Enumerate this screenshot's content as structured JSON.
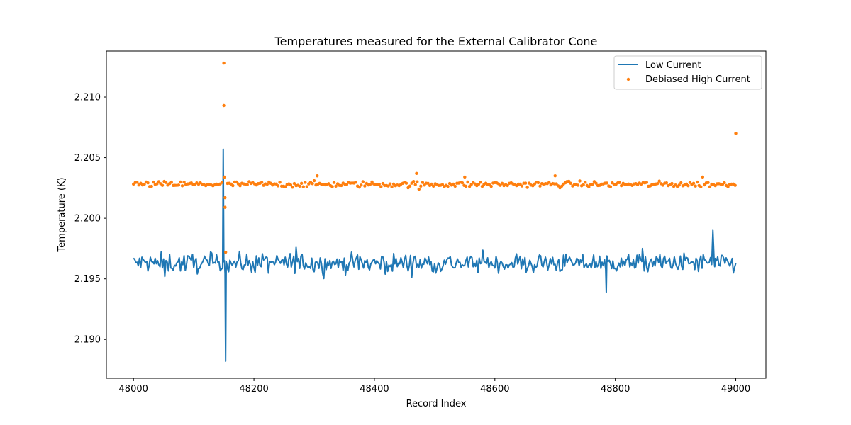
{
  "chart_data": {
    "type": "line",
    "title": "Temperatures measured for the External Calibrator Cone",
    "xlabel": "Record Index",
    "ylabel": "Temperature (K)",
    "xlim": [
      47955,
      49050
    ],
    "ylim": [
      2.1868,
      2.2138
    ],
    "x_ticks": [
      48000,
      48200,
      48400,
      48600,
      48800,
      49000
    ],
    "x_tick_labels": [
      "48000",
      "48200",
      "48400",
      "48600",
      "48800",
      "49000"
    ],
    "y_ticks": [
      2.19,
      2.195,
      2.2,
      2.205,
      2.21
    ],
    "y_tick_labels": [
      "2.190",
      "2.195",
      "2.200",
      "2.205",
      "2.210"
    ],
    "x_range": [
      48000,
      49000
    ],
    "legend_position": "top-right",
    "series": [
      {
        "name": "Low Current",
        "kind": "line",
        "color": "#1f77b4",
        "baseline": 2.1963,
        "noise": 0.0004,
        "features": [
          {
            "x": 48052,
            "y": 2.1952
          },
          {
            "x": 48149,
            "y": 2.2057
          },
          {
            "x": 48151,
            "y": 2.1965
          },
          {
            "x": 48153,
            "y": 2.1882
          },
          {
            "x": 48155,
            "y": 2.1962
          },
          {
            "x": 48270,
            "y": 2.1976
          },
          {
            "x": 48785,
            "y": 2.1939
          },
          {
            "x": 48845,
            "y": 2.1975
          },
          {
            "x": 48962,
            "y": 2.199
          },
          {
            "x": 48965,
            "y": 2.196
          }
        ]
      },
      {
        "name": "Debiased High Current",
        "kind": "scatter",
        "color": "#ff7f0e",
        "baseline": 2.2028,
        "noise": 0.00012,
        "features": [
          {
            "x": 48150,
            "y": 2.2128
          },
          {
            "x": 48150,
            "y": 2.2093
          },
          {
            "x": 48151,
            "y": 2.2034
          },
          {
            "x": 48152,
            "y": 2.2017
          },
          {
            "x": 48152,
            "y": 2.2009
          },
          {
            "x": 48153,
            "y": 2.1972
          },
          {
            "x": 48305,
            "y": 2.2035
          },
          {
            "x": 48470,
            "y": 2.2037
          },
          {
            "x": 48474,
            "y": 2.2024
          },
          {
            "x": 48550,
            "y": 2.2034
          },
          {
            "x": 48700,
            "y": 2.2035
          },
          {
            "x": 48945,
            "y": 2.2034
          },
          {
            "x": 49000,
            "y": 2.207
          }
        ]
      }
    ]
  }
}
